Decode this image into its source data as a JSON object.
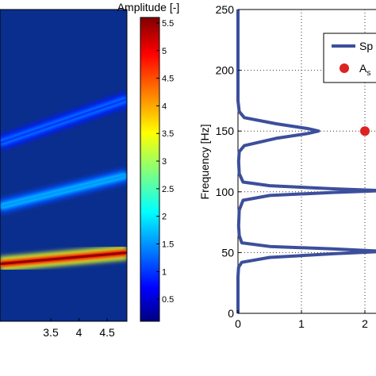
{
  "colorbar": {
    "title": "Amplitude [-]",
    "ticks": [
      "0.5",
      "1",
      "1.5",
      "2",
      "2.5",
      "3",
      "3.5",
      "4",
      "4.5",
      "5",
      "5.5"
    ],
    "range": [
      0.1,
      5.6
    ]
  },
  "chart_data": [
    {
      "type": "heatmap",
      "title": "",
      "xlabel": "",
      "ylabel": "",
      "xticks": [
        "3.5",
        "4",
        "4.5"
      ],
      "x_visible_range": [
        2.6,
        4.85
      ],
      "colormap": "jet",
      "colorbar_label": "Amplitude [-]",
      "ridges": [
        {
          "x_start": 2.6,
          "x_end": 4.85,
          "f_start": 46,
          "f_end": 55,
          "amplitude": 5.5
        },
        {
          "x_start": 2.6,
          "x_end": 4.85,
          "f_start": 92,
          "f_end": 117,
          "amplitude": 1.6
        },
        {
          "x_start": 2.6,
          "x_end": 4.85,
          "f_start": 143,
          "f_end": 178,
          "amplitude": 1.1
        }
      ]
    },
    {
      "type": "line",
      "title": "",
      "xlabel": "",
      "ylabel": "Frequency [Hz]",
      "xlim": [
        0,
        2.1
      ],
      "ylim": [
        0,
        250
      ],
      "xticks": [
        "0",
        "1",
        "2"
      ],
      "yticks": [
        "0",
        "50",
        "100",
        "150",
        "200",
        "250"
      ],
      "grid": true,
      "legend": {
        "position": "top-right",
        "entries": [
          "Sp",
          "A"
        ],
        "sub": "s"
      },
      "series": [
        {
          "style": "line",
          "color": "#3c4f9c",
          "points": [
            [
              0,
              0
            ],
            [
              0,
              30
            ],
            [
              0.01,
              38
            ],
            [
              0.06,
              42
            ],
            [
              0.5,
              46
            ],
            [
              1.5,
              49
            ],
            [
              2.3,
              51
            ],
            [
              1.5,
              53
            ],
            [
              0.5,
              55
            ],
            [
              0.06,
              58
            ],
            [
              0.02,
              64
            ],
            [
              0.01,
              72
            ],
            [
              0.02,
              85
            ],
            [
              0.08,
              93
            ],
            [
              0.5,
              97
            ],
            [
              1.5,
              99.5
            ],
            [
              2.3,
              101
            ],
            [
              1.5,
              102.5
            ],
            [
              0.5,
              105
            ],
            [
              0.08,
              108
            ],
            [
              0.02,
              115
            ],
            [
              0.01,
              125
            ],
            [
              0.02,
              133
            ],
            [
              0.1,
              138
            ],
            [
              0.6,
              144
            ],
            [
              1.1,
              148
            ],
            [
              1.27,
              150
            ],
            [
              1.1,
              152
            ],
            [
              0.6,
              156
            ],
            [
              0.1,
              161
            ],
            [
              0.02,
              166
            ],
            [
              0,
              175
            ],
            [
              0,
              250
            ]
          ]
        },
        {
          "style": "scatter",
          "color": "#dd2222",
          "points": [
            [
              2.0,
              150
            ]
          ]
        }
      ]
    }
  ]
}
